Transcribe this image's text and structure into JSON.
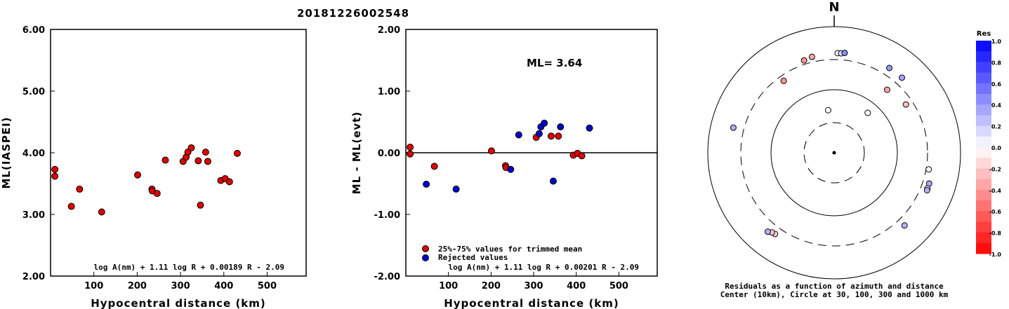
{
  "title": "20181226002548",
  "chart_data": [
    {
      "type": "scatter",
      "xlabel": "Hypocentral distance (km)",
      "ylabel": "ML(IASPEI)",
      "xlim": [
        0,
        590
      ],
      "ylim": [
        2.0,
        6.0
      ],
      "x_ticks": [
        "100",
        "200",
        "300",
        "400",
        "500"
      ],
      "y_ticks": [
        "2.00",
        "3.00",
        "4.00",
        "5.00",
        "6.00"
      ],
      "formula": "log A(nm) + 1.11 log R + 0.00189 R - 2.09",
      "series": [
        {
          "color": "#dd0000",
          "points": [
            [
              10,
              3.73
            ],
            [
              10,
              3.62
            ],
            [
              48,
              3.13
            ],
            [
              67,
              3.41
            ],
            [
              118,
              3.04
            ],
            [
              201,
              3.64
            ],
            [
              234,
              3.41
            ],
            [
              235,
              3.38
            ],
            [
              246,
              3.34
            ],
            [
              265,
              3.88
            ],
            [
              306,
              3.86
            ],
            [
              313,
              3.93
            ],
            [
              317,
              4.01
            ],
            [
              325,
              4.08
            ],
            [
              341,
              3.87
            ],
            [
              346,
              3.15
            ],
            [
              358,
              4.01
            ],
            [
              363,
              3.86
            ],
            [
              393,
              3.55
            ],
            [
              403,
              3.58
            ],
            [
              413,
              3.53
            ],
            [
              431,
              3.99
            ]
          ]
        }
      ]
    },
    {
      "type": "scatter",
      "xlabel": "Hypocentral distance (km)",
      "ylabel": "ML - ML(evt)",
      "xlim": [
        0,
        590
      ],
      "ylim": [
        -2.0,
        2.0
      ],
      "x_ticks": [
        "100",
        "200",
        "300",
        "400",
        "500"
      ],
      "y_ticks": [
        "-2.00",
        "-1.00",
        "0.00",
        "1.00",
        "2.00"
      ],
      "annotation": "ML= 3.64",
      "legend": [
        "25%-75% values for trimmed mean",
        "Rejected values"
      ],
      "formula": "log A(nm) + 1.11 log R + 0.00201 R - 2.09",
      "series": [
        {
          "name": "25%-75% values for trimmed mean",
          "color": "#dd0000",
          "points": [
            [
              10,
              0.09
            ],
            [
              10,
              -0.02
            ],
            [
              67,
              -0.22
            ],
            [
              201,
              0.03
            ],
            [
              234,
              -0.21
            ],
            [
              306,
              0.25
            ],
            [
              341,
              0.27
            ],
            [
              358,
              0.27
            ],
            [
              393,
              -0.04
            ],
            [
              403,
              -0.01
            ],
            [
              413,
              -0.05
            ],
            [
              235,
              -0.24
            ]
          ]
        },
        {
          "name": "Rejected values",
          "color": "#0000cc",
          "points": [
            [
              48,
              -0.51
            ],
            [
              118,
              -0.59
            ],
            [
              246,
              -0.27
            ],
            [
              265,
              0.29
            ],
            [
              313,
              0.31
            ],
            [
              317,
              0.42
            ],
            [
              325,
              0.48
            ],
            [
              346,
              -0.46
            ],
            [
              363,
              0.42
            ],
            [
              431,
              0.4
            ]
          ]
        }
      ]
    },
    {
      "type": "polar-scatter",
      "north_label": "N",
      "caption_line1": "Residuals as a function of azimuth and distance",
      "caption_line2": "Center (10km), Circle at 30, 100, 300 and 1000 km",
      "colorbar_title": "Res",
      "colorbar_ticks": [
        "1.0",
        "0.8",
        "0.6",
        "0.4",
        "0.2",
        "0.0",
        "-0.2",
        "-0.4",
        "-0.6",
        "-0.8",
        "-1.0"
      ],
      "points": [
        {
          "az": 352,
          "dist": 48,
          "res": 0.0
        },
        {
          "az": 40,
          "dist": 67,
          "res": 0.0
        },
        {
          "az": 40,
          "dist": 201,
          "res": -0.35
        },
        {
          "az": 56,
          "dist": 234,
          "res": -0.25
        },
        {
          "az": 325,
          "dist": 246,
          "res": -0.4
        },
        {
          "az": 342,
          "dist": 346,
          "res": -0.4
        },
        {
          "az": 347,
          "dist": 363,
          "res": -0.35
        },
        {
          "az": 2,
          "dist": 380,
          "res": 0.0
        },
        {
          "az": 4,
          "dist": 380,
          "res": 0.15
        },
        {
          "az": 6,
          "dist": 390,
          "res": 0.45
        },
        {
          "az": 33,
          "dist": 400,
          "res": 0.4
        },
        {
          "az": 42,
          "dist": 400,
          "res": 0.35
        },
        {
          "az": 100,
          "dist": 330,
          "res": 0.0
        },
        {
          "az": 108,
          "dist": 380,
          "res": 0.35
        },
        {
          "az": 111,
          "dist": 380,
          "res": 0.0
        },
        {
          "az": 112,
          "dist": 385,
          "res": 0.3
        },
        {
          "az": 136,
          "dist": 400,
          "res": 0.3
        },
        {
          "az": 216,
          "dist": 390,
          "res": -0.2
        },
        {
          "az": 218,
          "dist": 400,
          "res": -0.2
        },
        {
          "az": 220,
          "dist": 430,
          "res": 0.3
        },
        {
          "az": 284,
          "dist": 440,
          "res": 0.3
        }
      ]
    }
  ]
}
